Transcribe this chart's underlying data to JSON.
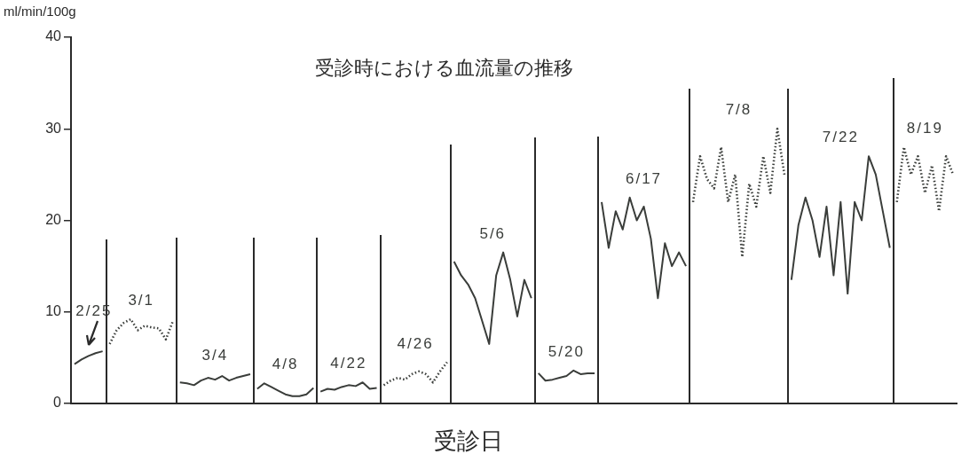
{
  "chart_data": {
    "type": "line",
    "title": "受診時における血流量の推移",
    "xlabel": "受診日",
    "ylabel": "ml/min/100g",
    "ylim": [
      0,
      40
    ],
    "yticks": [
      0,
      10,
      20,
      30,
      40
    ],
    "tick_labels": "y",
    "categories": [
      null,
      null,
      null,
      null,
      null,
      null,
      null,
      null,
      null,
      null,
      null,
      null,
      null,
      null,
      null,
      null,
      null,
      null,
      null,
      null,
      null,
      null,
      null,
      null,
      null,
      null,
      null,
      null,
      null,
      null,
      null,
      null,
      null,
      null,
      null,
      null,
      null,
      null,
      null,
      null,
      null,
      null,
      null,
      null,
      null,
      null,
      null,
      null,
      null,
      null,
      null,
      null,
      null,
      null,
      null,
      null,
      null,
      null,
      null,
      null,
      null,
      null,
      null,
      null,
      null,
      null,
      null,
      null,
      null,
      null,
      null,
      null,
      null,
      null,
      null,
      null,
      null,
      null,
      null,
      null,
      null,
      null,
      null,
      null,
      null,
      null,
      null,
      null,
      null,
      null,
      null,
      null,
      null,
      null,
      null,
      null,
      null,
      null,
      null,
      null,
      null,
      null,
      null,
      null,
      null,
      null,
      null,
      null,
      null,
      null,
      null,
      null,
      null,
      null,
      null,
      null,
      null,
      null,
      null,
      null,
      null,
      null,
      null,
      null,
      null,
      null
    ],
    "series": [
      {
        "name": "2/25",
        "color": "#3a3d3a",
        "line_style": "solid",
        "values": [
          4.3,
          4.8,
          5.2,
          5.5,
          5.7,
          null,
          null,
          null,
          null,
          null,
          null,
          null,
          null,
          null,
          null,
          null,
          null,
          null,
          null,
          null,
          null,
          null,
          null,
          null,
          null,
          null,
          null,
          null,
          null,
          null,
          null,
          null,
          null,
          null,
          null,
          null,
          null,
          null,
          null,
          null,
          null,
          null,
          null,
          null,
          null,
          null,
          null,
          null,
          null,
          null,
          null,
          null,
          null,
          null,
          null,
          null,
          null,
          null,
          null,
          null,
          null,
          null,
          null,
          null,
          null,
          null,
          null,
          null,
          null,
          null,
          null,
          null,
          null,
          null,
          null,
          null,
          null,
          null,
          null,
          null,
          null,
          null,
          null,
          null,
          null,
          null,
          null,
          null,
          null,
          null,
          null,
          null,
          null,
          null,
          null,
          null,
          null,
          null,
          null,
          null,
          null,
          null,
          null,
          null,
          null,
          null,
          null,
          null,
          null,
          null,
          null,
          null,
          null,
          null,
          null,
          null,
          null,
          null,
          null,
          null,
          null,
          null,
          null,
          null,
          null,
          null
        ]
      },
      {
        "name": "3/1",
        "color": "#3a3d3a",
        "line_style": "dotted",
        "values": [
          null,
          null,
          null,
          null,
          null,
          6.5,
          8.0,
          8.8,
          9.2,
          8.0,
          8.5,
          8.3,
          8.2,
          7.0,
          9.0,
          null,
          null,
          null,
          null,
          null,
          null,
          null,
          null,
          null,
          null,
          null,
          null,
          null,
          null,
          null,
          null,
          null,
          null,
          null,
          null,
          null,
          null,
          null,
          null,
          null,
          null,
          null,
          null,
          null,
          null,
          null,
          null,
          null,
          null,
          null,
          null,
          null,
          null,
          null,
          null,
          null,
          null,
          null,
          null,
          null,
          null,
          null,
          null,
          null,
          null,
          null,
          null,
          null,
          null,
          null,
          null,
          null,
          null,
          null,
          null,
          null,
          null,
          null,
          null,
          null,
          null,
          null,
          null,
          null,
          null,
          null,
          null,
          null,
          null,
          null,
          null,
          null,
          null,
          null,
          null,
          null,
          null,
          null,
          null,
          null,
          null,
          null,
          null,
          null,
          null,
          null,
          null,
          null,
          null,
          null,
          null,
          null,
          null,
          null,
          null,
          null,
          null,
          null,
          null,
          null,
          null,
          null,
          null,
          null,
          null,
          null
        ]
      },
      {
        "name": "3/4",
        "color": "#3a3d3a",
        "line_style": "solid",
        "values": [
          null,
          null,
          null,
          null,
          null,
          null,
          null,
          null,
          null,
          null,
          null,
          null,
          null,
          null,
          null,
          2.3,
          2.2,
          2.0,
          2.5,
          2.8,
          2.6,
          3.0,
          2.5,
          2.8,
          3.0,
          3.2,
          null,
          null,
          null,
          null,
          null,
          null,
          null,
          null,
          null,
          null,
          null,
          null,
          null,
          null,
          null,
          null,
          null,
          null,
          null,
          null,
          null,
          null,
          null,
          null,
          null,
          null,
          null,
          null,
          null,
          null,
          null,
          null,
          null,
          null,
          null,
          null,
          null,
          null,
          null,
          null,
          null,
          null,
          null,
          null,
          null,
          null,
          null,
          null,
          null,
          null,
          null,
          null,
          null,
          null,
          null,
          null,
          null,
          null,
          null,
          null,
          null,
          null,
          null,
          null,
          null,
          null,
          null,
          null,
          null,
          null,
          null,
          null,
          null,
          null,
          null,
          null,
          null,
          null,
          null,
          null,
          null,
          null,
          null,
          null,
          null,
          null,
          null,
          null,
          null,
          null,
          null,
          null,
          null,
          null,
          null,
          null,
          null,
          null,
          null,
          null
        ]
      },
      {
        "name": "4/8",
        "color": "#3a3d3a",
        "line_style": "solid",
        "values": [
          null,
          null,
          null,
          null,
          null,
          null,
          null,
          null,
          null,
          null,
          null,
          null,
          null,
          null,
          null,
          null,
          null,
          null,
          null,
          null,
          null,
          null,
          null,
          null,
          null,
          null,
          1.6,
          2.2,
          1.8,
          1.4,
          1.0,
          0.8,
          0.8,
          1.0,
          1.7,
          null,
          null,
          null,
          null,
          null,
          null,
          null,
          null,
          null,
          null,
          null,
          null,
          null,
          null,
          null,
          null,
          null,
          null,
          null,
          null,
          null,
          null,
          null,
          null,
          null,
          null,
          null,
          null,
          null,
          null,
          null,
          null,
          null,
          null,
          null,
          null,
          null,
          null,
          null,
          null,
          null,
          null,
          null,
          null,
          null,
          null,
          null,
          null,
          null,
          null,
          null,
          null,
          null,
          null,
          null,
          null,
          null,
          null,
          null,
          null,
          null,
          null,
          null,
          null,
          null,
          null,
          null,
          null,
          null,
          null,
          null,
          null,
          null,
          null,
          null,
          null,
          null,
          null,
          null,
          null,
          null,
          null,
          null,
          null,
          null,
          null,
          null,
          null,
          null,
          null,
          null
        ]
      },
      {
        "name": "4/22",
        "color": "#3a3d3a",
        "line_style": "solid",
        "values": [
          null,
          null,
          null,
          null,
          null,
          null,
          null,
          null,
          null,
          null,
          null,
          null,
          null,
          null,
          null,
          null,
          null,
          null,
          null,
          null,
          null,
          null,
          null,
          null,
          null,
          null,
          null,
          null,
          null,
          null,
          null,
          null,
          null,
          null,
          null,
          1.3,
          1.6,
          1.5,
          1.8,
          2.0,
          1.9,
          2.3,
          1.6,
          1.7,
          null,
          null,
          null,
          null,
          null,
          null,
          null,
          null,
          null,
          null,
          null,
          null,
          null,
          null,
          null,
          null,
          null,
          null,
          null,
          null,
          null,
          null,
          null,
          null,
          null,
          null,
          null,
          null,
          null,
          null,
          null,
          null,
          null,
          null,
          null,
          null,
          null,
          null,
          null,
          null,
          null,
          null,
          null,
          null,
          null,
          null,
          null,
          null,
          null,
          null,
          null,
          null,
          null,
          null,
          null,
          null,
          null,
          null,
          null,
          null,
          null,
          null,
          null,
          null,
          null,
          null,
          null,
          null,
          null,
          null,
          null,
          null,
          null,
          null,
          null,
          null,
          null,
          null,
          null,
          null,
          null,
          null
        ]
      },
      {
        "name": "4/26",
        "color": "#3a3d3a",
        "line_style": "dotted",
        "values": [
          null,
          null,
          null,
          null,
          null,
          null,
          null,
          null,
          null,
          null,
          null,
          null,
          null,
          null,
          null,
          null,
          null,
          null,
          null,
          null,
          null,
          null,
          null,
          null,
          null,
          null,
          null,
          null,
          null,
          null,
          null,
          null,
          null,
          null,
          null,
          null,
          null,
          null,
          null,
          null,
          null,
          null,
          null,
          null,
          2.0,
          2.5,
          2.8,
          2.6,
          3.2,
          3.5,
          3.2,
          2.3,
          3.5,
          4.5,
          null,
          null,
          null,
          null,
          null,
          null,
          null,
          null,
          null,
          null,
          null,
          null,
          null,
          null,
          null,
          null,
          null,
          null,
          null,
          null,
          null,
          null,
          null,
          null,
          null,
          null,
          null,
          null,
          null,
          null,
          null,
          null,
          null,
          null,
          null,
          null,
          null,
          null,
          null,
          null,
          null,
          null,
          null,
          null,
          null,
          null,
          null,
          null,
          null,
          null,
          null,
          null,
          null,
          null,
          null,
          null,
          null,
          null,
          null,
          null,
          null,
          null,
          null,
          null,
          null,
          null,
          null,
          null,
          null,
          null,
          null,
          null
        ]
      },
      {
        "name": "5/6",
        "color": "#3a3d3a",
        "line_style": "solid",
        "values": [
          null,
          null,
          null,
          null,
          null,
          null,
          null,
          null,
          null,
          null,
          null,
          null,
          null,
          null,
          null,
          null,
          null,
          null,
          null,
          null,
          null,
          null,
          null,
          null,
          null,
          null,
          null,
          null,
          null,
          null,
          null,
          null,
          null,
          null,
          null,
          null,
          null,
          null,
          null,
          null,
          null,
          null,
          null,
          null,
          null,
          null,
          null,
          null,
          null,
          null,
          null,
          null,
          null,
          null,
          15.5,
          14.0,
          13.0,
          11.5,
          9.0,
          6.5,
          14.0,
          16.5,
          13.5,
          9.5,
          13.5,
          11.5,
          null,
          null,
          null,
          null,
          null,
          null,
          null,
          null,
          null,
          null,
          null,
          null,
          null,
          null,
          null,
          null,
          null,
          null,
          null,
          null,
          null,
          null,
          null,
          null,
          null,
          null,
          null,
          null,
          null,
          null,
          null,
          null,
          null,
          null,
          null,
          null,
          null,
          null,
          null,
          null,
          null,
          null,
          null,
          null,
          null,
          null,
          null,
          null,
          null,
          null,
          null,
          null,
          null,
          null,
          null,
          null,
          null,
          null,
          null,
          null
        ]
      },
      {
        "name": "5/20",
        "color": "#3a3d3a",
        "line_style": "solid",
        "values": [
          null,
          null,
          null,
          null,
          null,
          null,
          null,
          null,
          null,
          null,
          null,
          null,
          null,
          null,
          null,
          null,
          null,
          null,
          null,
          null,
          null,
          null,
          null,
          null,
          null,
          null,
          null,
          null,
          null,
          null,
          null,
          null,
          null,
          null,
          null,
          null,
          null,
          null,
          null,
          null,
          null,
          null,
          null,
          null,
          null,
          null,
          null,
          null,
          null,
          null,
          null,
          null,
          null,
          null,
          null,
          null,
          null,
          null,
          null,
          null,
          null,
          null,
          null,
          null,
          null,
          null,
          3.3,
          2.5,
          2.6,
          2.8,
          3.0,
          3.6,
          3.2,
          3.3,
          3.3,
          null,
          null,
          null,
          null,
          null,
          null,
          null,
          null,
          null,
          null,
          null,
          null,
          null,
          null,
          null,
          null,
          null,
          null,
          null,
          null,
          null,
          null,
          null,
          null,
          null,
          null,
          null,
          null,
          null,
          null,
          null,
          null,
          null,
          null,
          null,
          null,
          null,
          null,
          null,
          null,
          null,
          null,
          null,
          null,
          null,
          null,
          null,
          null,
          null,
          null,
          null
        ]
      },
      {
        "name": "6/17",
        "color": "#3a3d3a",
        "line_style": "solid",
        "values": [
          null,
          null,
          null,
          null,
          null,
          null,
          null,
          null,
          null,
          null,
          null,
          null,
          null,
          null,
          null,
          null,
          null,
          null,
          null,
          null,
          null,
          null,
          null,
          null,
          null,
          null,
          null,
          null,
          null,
          null,
          null,
          null,
          null,
          null,
          null,
          null,
          null,
          null,
          null,
          null,
          null,
          null,
          null,
          null,
          null,
          null,
          null,
          null,
          null,
          null,
          null,
          null,
          null,
          null,
          null,
          null,
          null,
          null,
          null,
          null,
          null,
          null,
          null,
          null,
          null,
          null,
          null,
          null,
          null,
          null,
          null,
          null,
          null,
          null,
          null,
          22,
          17,
          21,
          19,
          22.5,
          20,
          21.5,
          18,
          11.5,
          17.5,
          15,
          16.5,
          15,
          null,
          null,
          null,
          null,
          null,
          null,
          null,
          null,
          null,
          null,
          null,
          null,
          null,
          null,
          null,
          null,
          null,
          null,
          null,
          null,
          null,
          null,
          null,
          null,
          null,
          null,
          null,
          null,
          null,
          null,
          null,
          null,
          null,
          null,
          null,
          null,
          null,
          null
        ]
      },
      {
        "name": "7/8",
        "color": "#3a3d3a",
        "line_style": "dotted",
        "values": [
          null,
          null,
          null,
          null,
          null,
          null,
          null,
          null,
          null,
          null,
          null,
          null,
          null,
          null,
          null,
          null,
          null,
          null,
          null,
          null,
          null,
          null,
          null,
          null,
          null,
          null,
          null,
          null,
          null,
          null,
          null,
          null,
          null,
          null,
          null,
          null,
          null,
          null,
          null,
          null,
          null,
          null,
          null,
          null,
          null,
          null,
          null,
          null,
          null,
          null,
          null,
          null,
          null,
          null,
          null,
          null,
          null,
          null,
          null,
          null,
          null,
          null,
          null,
          null,
          null,
          null,
          null,
          null,
          null,
          null,
          null,
          null,
          null,
          null,
          null,
          null,
          null,
          null,
          null,
          null,
          null,
          null,
          null,
          null,
          null,
          null,
          null,
          null,
          22,
          27,
          24.5,
          23.5,
          28,
          22,
          25,
          16,
          24,
          21.5,
          27,
          23,
          30,
          25,
          null,
          null,
          null,
          null,
          null,
          null,
          null,
          null,
          null,
          null,
          null,
          null,
          null,
          null,
          null,
          null,
          null,
          null,
          null,
          null,
          null,
          null,
          null,
          null
        ]
      },
      {
        "name": "7/22",
        "color": "#3a3d3a",
        "line_style": "solid",
        "values": [
          null,
          null,
          null,
          null,
          null,
          null,
          null,
          null,
          null,
          null,
          null,
          null,
          null,
          null,
          null,
          null,
          null,
          null,
          null,
          null,
          null,
          null,
          null,
          null,
          null,
          null,
          null,
          null,
          null,
          null,
          null,
          null,
          null,
          null,
          null,
          null,
          null,
          null,
          null,
          null,
          null,
          null,
          null,
          null,
          null,
          null,
          null,
          null,
          null,
          null,
          null,
          null,
          null,
          null,
          null,
          null,
          null,
          null,
          null,
          null,
          null,
          null,
          null,
          null,
          null,
          null,
          null,
          null,
          null,
          null,
          null,
          null,
          null,
          null,
          null,
          null,
          null,
          null,
          null,
          null,
          null,
          null,
          null,
          null,
          null,
          null,
          null,
          null,
          null,
          null,
          null,
          null,
          null,
          null,
          null,
          null,
          null,
          null,
          null,
          null,
          null,
          null,
          13.5,
          19.5,
          22.5,
          20,
          16,
          21.5,
          14,
          22,
          12,
          22,
          20,
          27,
          25,
          21,
          17,
          null,
          null,
          null,
          null,
          null,
          null,
          null,
          null,
          null
        ]
      },
      {
        "name": "8/19",
        "color": "#3a3d3a",
        "line_style": "dotted",
        "values": [
          null,
          null,
          null,
          null,
          null,
          null,
          null,
          null,
          null,
          null,
          null,
          null,
          null,
          null,
          null,
          null,
          null,
          null,
          null,
          null,
          null,
          null,
          null,
          null,
          null,
          null,
          null,
          null,
          null,
          null,
          null,
          null,
          null,
          null,
          null,
          null,
          null,
          null,
          null,
          null,
          null,
          null,
          null,
          null,
          null,
          null,
          null,
          null,
          null,
          null,
          null,
          null,
          null,
          null,
          null,
          null,
          null,
          null,
          null,
          null,
          null,
          null,
          null,
          null,
          null,
          null,
          null,
          null,
          null,
          null,
          null,
          null,
          null,
          null,
          null,
          null,
          null,
          null,
          null,
          null,
          null,
          null,
          null,
          null,
          null,
          null,
          null,
          null,
          null,
          null,
          null,
          null,
          null,
          null,
          null,
          null,
          null,
          null,
          null,
          null,
          null,
          null,
          null,
          null,
          null,
          null,
          null,
          null,
          null,
          null,
          null,
          null,
          null,
          null,
          null,
          null,
          null,
          22,
          28,
          25,
          27,
          23,
          26,
          21,
          27,
          25
        ]
      }
    ]
  }
}
